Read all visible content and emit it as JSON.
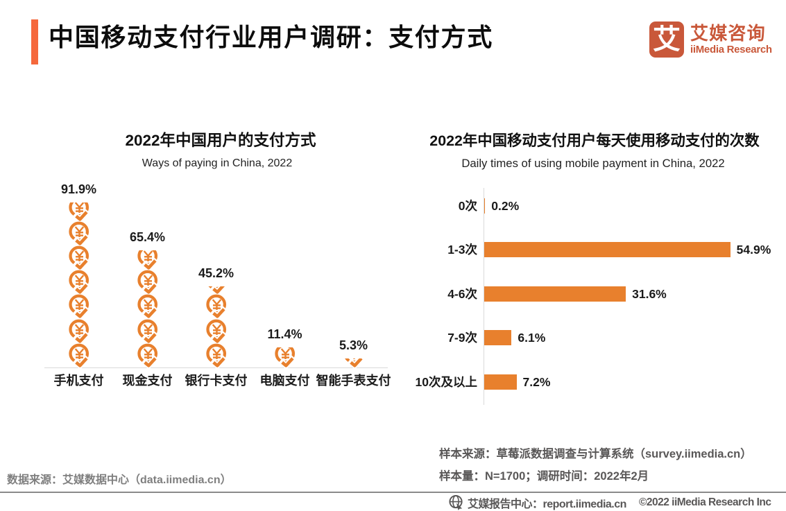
{
  "page": {
    "title": "中国移动支付行业用户调研：支付方式",
    "accent_color": "#f5683c",
    "chart_color": "#e8802d",
    "logo": {
      "mark_glyph": "艾",
      "mark_color": "#c9583a",
      "name_cn": "艾媒咨询",
      "name_en": "iiMedia Research"
    }
  },
  "chart_data": [
    {
      "type": "bar",
      "variant": "pictogram",
      "orientation": "vertical",
      "title": "2022年中国用户的支付方式",
      "subtitle": "Ways of paying in China, 2022",
      "categories": [
        "手机支付",
        "现金支付",
        "银行卡支付",
        "电脑支付",
        "智能手表支付"
      ],
      "values": [
        91.9,
        65.4,
        45.2,
        11.4,
        5.3
      ],
      "value_suffix": "%",
      "ylim": [
        0,
        100
      ],
      "symbol": "yuan-coin-check-icon",
      "color": "#e8802d",
      "grid": false,
      "legend": false
    },
    {
      "type": "bar",
      "orientation": "horizontal",
      "title": "2022年中国移动支付用户每天使用移动支付的次数",
      "subtitle": "Daily times of using mobile payment in China, 2022",
      "categories": [
        "0次",
        "1-3次",
        "4-6次",
        "7-9次",
        "10次及以上"
      ],
      "values": [
        0.2,
        54.9,
        31.6,
        6.1,
        7.2
      ],
      "value_suffix": "%",
      "xlim": [
        0,
        60
      ],
      "color": "#e8802d",
      "grid": false,
      "legend": false
    }
  ],
  "footer": {
    "source_left": "数据来源：艾媒数据中心（data.iimedia.cn）",
    "note_line1": "样本来源：草莓派数据调查与计算系统（survey.iimedia.cn）",
    "note_line2": "样本量：N=1700；调研时间：2022年2月",
    "report_center": "艾媒报告中心：report.iimedia.cn",
    "copyright": "©2022 iiMedia Research Inc"
  }
}
